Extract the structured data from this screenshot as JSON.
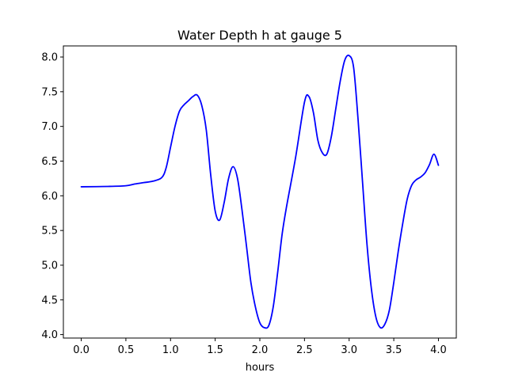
{
  "chart_data": {
    "type": "line",
    "title": "Water Depth h at gauge 5",
    "xlabel": "hours",
    "ylabel": "",
    "xlim": [
      -0.2,
      4.2
    ],
    "ylim": [
      3.95,
      8.16
    ],
    "xticks": [
      0.0,
      0.5,
      1.0,
      1.5,
      2.0,
      2.5,
      3.0,
      3.5,
      4.0
    ],
    "xtick_labels": [
      "0.0",
      "0.5",
      "1.0",
      "1.5",
      "2.0",
      "2.5",
      "3.0",
      "3.5",
      "4.0"
    ],
    "yticks": [
      4.0,
      4.5,
      5.0,
      5.5,
      6.0,
      6.5,
      7.0,
      7.5,
      8.0
    ],
    "ytick_labels": [
      "4.0",
      "4.5",
      "5.0",
      "5.5",
      "6.0",
      "6.5",
      "7.0",
      "7.5",
      "8.0"
    ],
    "grid": false,
    "series": [
      {
        "color": "#0000ff",
        "x": [
          0.0,
          0.3,
          0.5,
          0.6,
          0.7,
          0.8,
          0.9,
          0.95,
          1.0,
          1.05,
          1.1,
          1.15,
          1.2,
          1.25,
          1.3,
          1.35,
          1.4,
          1.45,
          1.5,
          1.55,
          1.6,
          1.65,
          1.7,
          1.75,
          1.8,
          1.85,
          1.9,
          1.95,
          2.0,
          2.05,
          2.1,
          2.15,
          2.2,
          2.25,
          2.3,
          2.4,
          2.5,
          2.55,
          2.6,
          2.65,
          2.7,
          2.75,
          2.8,
          2.85,
          2.9,
          2.95,
          3.0,
          3.05,
          3.1,
          3.15,
          3.2,
          3.25,
          3.3,
          3.35,
          3.4,
          3.45,
          3.5,
          3.55,
          3.6,
          3.65,
          3.7,
          3.75,
          3.8,
          3.85,
          3.9,
          3.95,
          4.0
        ],
        "y": [
          6.13,
          6.135,
          6.145,
          6.17,
          6.19,
          6.21,
          6.26,
          6.4,
          6.7,
          7.0,
          7.22,
          7.31,
          7.37,
          7.43,
          7.45,
          7.3,
          6.95,
          6.3,
          5.78,
          5.65,
          5.9,
          6.25,
          6.42,
          6.25,
          5.8,
          5.28,
          4.75,
          4.4,
          4.17,
          4.1,
          4.13,
          4.4,
          4.9,
          5.45,
          5.85,
          6.55,
          7.35,
          7.43,
          7.2,
          6.8,
          6.62,
          6.6,
          6.85,
          7.25,
          7.65,
          7.95,
          8.02,
          7.85,
          7.1,
          6.2,
          5.3,
          4.65,
          4.25,
          4.1,
          4.15,
          4.35,
          4.75,
          5.2,
          5.6,
          5.95,
          6.15,
          6.23,
          6.27,
          6.33,
          6.45,
          6.6,
          6.44
        ]
      }
    ]
  }
}
